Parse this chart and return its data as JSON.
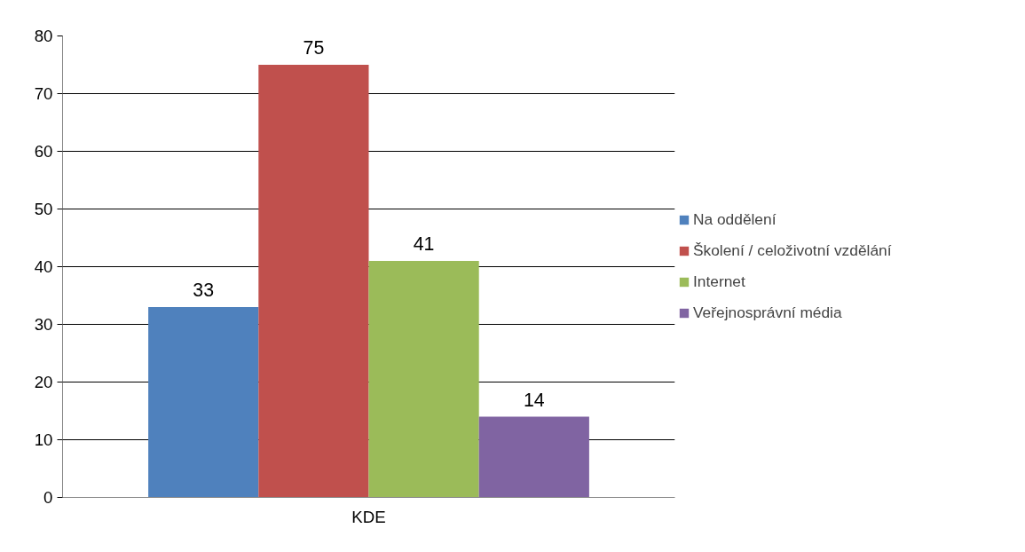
{
  "chart_data": {
    "type": "bar",
    "categories": [
      "KDE"
    ],
    "series": [
      {
        "name": "Na oddělení",
        "color": "#4f81bd",
        "values": [
          33
        ]
      },
      {
        "name": "Školení / celoživotní vzdělání",
        "color": "#c0504d",
        "values": [
          75
        ]
      },
      {
        "name": "Internet",
        "color": "#9bbb59",
        "values": [
          41
        ]
      },
      {
        "name": "Veřejnosprávní média",
        "color": "#8064a2",
        "values": [
          14
        ]
      }
    ],
    "ylim": [
      0,
      80
    ],
    "yticks": [
      0,
      10,
      20,
      30,
      40,
      50,
      60,
      70,
      80
    ],
    "grid": "y",
    "legend": "right",
    "data_labels": true
  }
}
